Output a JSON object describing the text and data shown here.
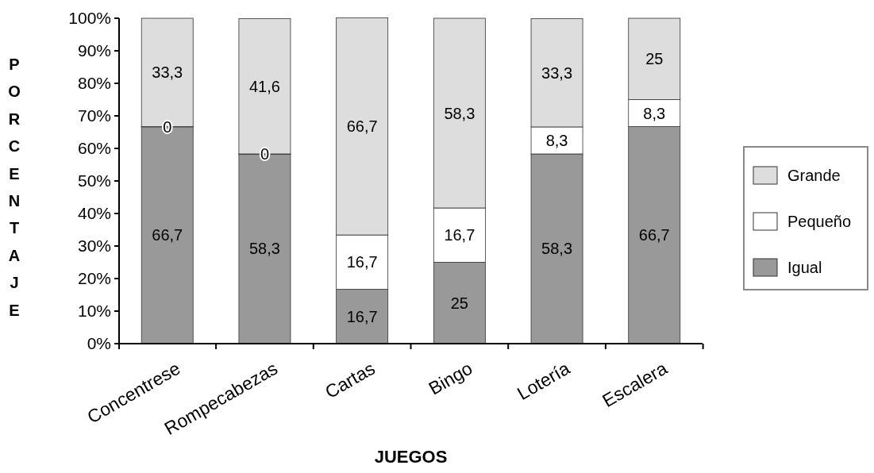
{
  "chart_data": {
    "type": "bar",
    "stacked": true,
    "xlabel": "JUEGOS",
    "ylabel": "PORCENTAJE",
    "categories": [
      "Concentrese",
      "Rompecabezas",
      "Cartas",
      "Bingo",
      "Lotería",
      "Escalera"
    ],
    "series": [
      {
        "name": "Igual",
        "color": "#999999",
        "values": [
          66.7,
          58.3,
          16.7,
          25,
          58.3,
          66.7
        ],
        "value_labels": [
          "66,7",
          "58,3",
          "16,7",
          "25",
          "58,3",
          "66,7"
        ]
      },
      {
        "name": "Pequeño",
        "color": "#ffffff",
        "values": [
          0,
          0,
          16.7,
          16.7,
          8.3,
          8.3
        ],
        "value_labels": [
          "0",
          "0",
          "16,7",
          "16,7",
          "8,3",
          "8,3"
        ]
      },
      {
        "name": "Grande",
        "color": "#dddddd",
        "values": [
          33.3,
          41.6,
          66.7,
          58.3,
          33.3,
          25
        ],
        "value_labels": [
          "33,3",
          "41,6",
          "66,7",
          "58,3",
          "33,3",
          "25"
        ]
      }
    ],
    "ylim": [
      0,
      100
    ],
    "yticks": [
      {
        "value": 0,
        "label": "0%"
      },
      {
        "value": 10,
        "label": "10%"
      },
      {
        "value": 20,
        "label": "20%"
      },
      {
        "value": 30,
        "label": "30%"
      },
      {
        "value": 40,
        "label": "40%"
      },
      {
        "value": 50,
        "label": "50%"
      },
      {
        "value": 60,
        "label": "60%"
      },
      {
        "value": 70,
        "label": "70%"
      },
      {
        "value": 80,
        "label": "80%"
      },
      {
        "value": 90,
        "label": "90%"
      },
      {
        "value": 100,
        "label": "100%"
      }
    ],
    "grid": false,
    "legend": "right"
  }
}
